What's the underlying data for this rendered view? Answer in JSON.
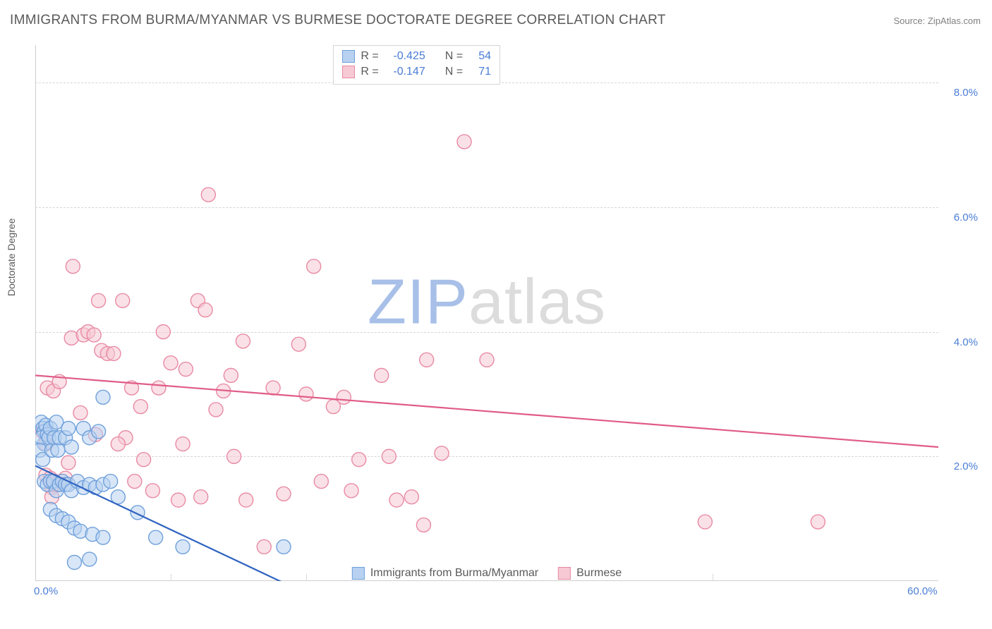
{
  "title": "IMMIGRANTS FROM BURMA/MYANMAR VS BURMESE DOCTORATE DEGREE CORRELATION CHART",
  "source_prefix": "Source: ",
  "source_name": "ZipAtlas.com",
  "ylabel": "Doctorate Degree",
  "watermark_part1": "ZIP",
  "watermark_part2": "atlas",
  "chart": {
    "type": "scatter",
    "background_color": "#ffffff",
    "grid_color": "#d5d5d5",
    "axis_color": "#cfcfcf",
    "tick_color": "#4a7dd6",
    "label_color": "#5a5a5a",
    "title_fontsize": 19,
    "tick_fontsize": 15,
    "label_fontsize": 14,
    "xlim": [
      0,
      60
    ],
    "ylim": [
      0,
      8.6
    ],
    "xticks": [
      {
        "v": 0.0,
        "label": "0.0%"
      },
      {
        "v": 60.0,
        "label": "60.0%"
      }
    ],
    "yticks": [
      {
        "v": 2.0,
        "label": "2.0%"
      },
      {
        "v": 4.0,
        "label": "4.0%"
      },
      {
        "v": 6.0,
        "label": "6.0%"
      },
      {
        "v": 8.0,
        "label": "8.0%"
      }
    ],
    "vgrid": [
      9,
      18,
      27,
      36,
      45
    ],
    "marker_radius": 10,
    "marker_stroke_width": 1.4,
    "line_width": 2.2,
    "series": [
      {
        "id": "immigrants",
        "label": "Immigrants from Burma/Myanmar",
        "fill": "#b8d1f0",
        "stroke": "#6fa0db",
        "line_color": "#2f63c0",
        "R_label": "R =",
        "R": "-0.425",
        "N_label": "N =",
        "N": "54",
        "regression": {
          "x1": 0,
          "y1": 1.85,
          "x2": 18,
          "y2": -0.2
        },
        "points": [
          [
            0.4,
            2.55
          ],
          [
            0.5,
            2.45
          ],
          [
            0.6,
            2.4
          ],
          [
            0.6,
            2.2
          ],
          [
            0.7,
            2.5
          ],
          [
            0.4,
            2.3
          ],
          [
            0.3,
            2.1
          ],
          [
            0.5,
            1.95
          ],
          [
            0.8,
            2.35
          ],
          [
            0.9,
            2.3
          ],
          [
            1.0,
            2.45
          ],
          [
            1.1,
            2.1
          ],
          [
            1.25,
            2.3
          ],
          [
            1.4,
            2.55
          ],
          [
            1.5,
            2.1
          ],
          [
            1.6,
            2.3
          ],
          [
            2.0,
            2.3
          ],
          [
            2.2,
            2.45
          ],
          [
            2.4,
            2.15
          ],
          [
            3.2,
            2.45
          ],
          [
            3.6,
            2.3
          ],
          [
            4.2,
            2.4
          ],
          [
            4.5,
            2.95
          ],
          [
            0.6,
            1.6
          ],
          [
            0.8,
            1.55
          ],
          [
            1.0,
            1.6
          ],
          [
            1.2,
            1.6
          ],
          [
            1.4,
            1.45
          ],
          [
            1.6,
            1.55
          ],
          [
            1.8,
            1.6
          ],
          [
            2.0,
            1.55
          ],
          [
            2.2,
            1.55
          ],
          [
            2.4,
            1.45
          ],
          [
            2.8,
            1.6
          ],
          [
            3.2,
            1.5
          ],
          [
            3.6,
            1.55
          ],
          [
            4.0,
            1.5
          ],
          [
            4.5,
            1.55
          ],
          [
            5.0,
            1.6
          ],
          [
            5.5,
            1.35
          ],
          [
            1.0,
            1.15
          ],
          [
            1.4,
            1.05
          ],
          [
            1.8,
            1.0
          ],
          [
            2.2,
            0.95
          ],
          [
            2.6,
            0.85
          ],
          [
            3.0,
            0.8
          ],
          [
            3.8,
            0.75
          ],
          [
            4.5,
            0.7
          ],
          [
            2.6,
            0.3
          ],
          [
            3.6,
            0.35
          ],
          [
            6.8,
            1.1
          ],
          [
            8.0,
            0.7
          ],
          [
            9.8,
            0.55
          ],
          [
            16.5,
            0.55
          ]
        ]
      },
      {
        "id": "burmese",
        "label": "Burmese",
        "fill": "#f6c9d4",
        "stroke": "#e88aa3",
        "line_color": "#e05c87",
        "R_label": "R =",
        "R": "-0.147",
        "N_label": "N =",
        "N": "71",
        "regression": {
          "x1": 0,
          "y1": 3.3,
          "x2": 60,
          "y2": 2.15
        },
        "points": [
          [
            0.5,
            2.4
          ],
          [
            0.7,
            2.2
          ],
          [
            0.7,
            1.7
          ],
          [
            1.0,
            1.65
          ],
          [
            1.1,
            1.5
          ],
          [
            1.1,
            1.35
          ],
          [
            1.2,
            1.55
          ],
          [
            1.3,
            1.6
          ],
          [
            1.6,
            1.55
          ],
          [
            2.0,
            1.65
          ],
          [
            2.2,
            1.9
          ],
          [
            0.8,
            3.1
          ],
          [
            1.2,
            3.05
          ],
          [
            1.6,
            3.2
          ],
          [
            2.4,
            3.9
          ],
          [
            2.5,
            5.05
          ],
          [
            3.2,
            3.95
          ],
          [
            3.5,
            4.0
          ],
          [
            3.9,
            3.95
          ],
          [
            4.2,
            4.5
          ],
          [
            4.4,
            3.7
          ],
          [
            4.8,
            3.65
          ],
          [
            5.2,
            3.65
          ],
          [
            5.8,
            4.5
          ],
          [
            6.0,
            2.3
          ],
          [
            6.4,
            3.1
          ],
          [
            7.0,
            2.8
          ],
          [
            7.2,
            1.95
          ],
          [
            7.8,
            1.45
          ],
          [
            8.2,
            3.1
          ],
          [
            8.5,
            4.0
          ],
          [
            9.0,
            3.5
          ],
          [
            9.5,
            1.3
          ],
          [
            9.8,
            2.2
          ],
          [
            10.0,
            3.4
          ],
          [
            10.8,
            4.5
          ],
          [
            11.3,
            4.35
          ],
          [
            11.5,
            6.2
          ],
          [
            12.0,
            2.75
          ],
          [
            12.5,
            3.05
          ],
          [
            13.0,
            3.3
          ],
          [
            13.2,
            2.0
          ],
          [
            13.8,
            3.85
          ],
          [
            14.0,
            1.3
          ],
          [
            15.2,
            0.55
          ],
          [
            15.8,
            3.1
          ],
          [
            16.5,
            1.4
          ],
          [
            17.5,
            3.8
          ],
          [
            18.0,
            3.0
          ],
          [
            18.5,
            5.05
          ],
          [
            19.8,
            2.8
          ],
          [
            20.5,
            2.95
          ],
          [
            21.0,
            1.45
          ],
          [
            21.5,
            1.95
          ],
          [
            23.0,
            3.3
          ],
          [
            23.5,
            2.0
          ],
          [
            24.0,
            1.3
          ],
          [
            25.0,
            1.35
          ],
          [
            25.8,
            0.9
          ],
          [
            26.0,
            3.55
          ],
          [
            27.0,
            2.05
          ],
          [
            28.5,
            7.05
          ],
          [
            30.0,
            3.55
          ],
          [
            44.5,
            0.95
          ],
          [
            52.0,
            0.95
          ],
          [
            4.0,
            2.35
          ],
          [
            6.6,
            1.6
          ],
          [
            3.0,
            2.7
          ],
          [
            5.5,
            2.2
          ],
          [
            11.0,
            1.35
          ],
          [
            19.0,
            1.6
          ]
        ]
      }
    ]
  },
  "legend_bottom": [
    {
      "series": "immigrants"
    },
    {
      "series": "burmese"
    }
  ]
}
